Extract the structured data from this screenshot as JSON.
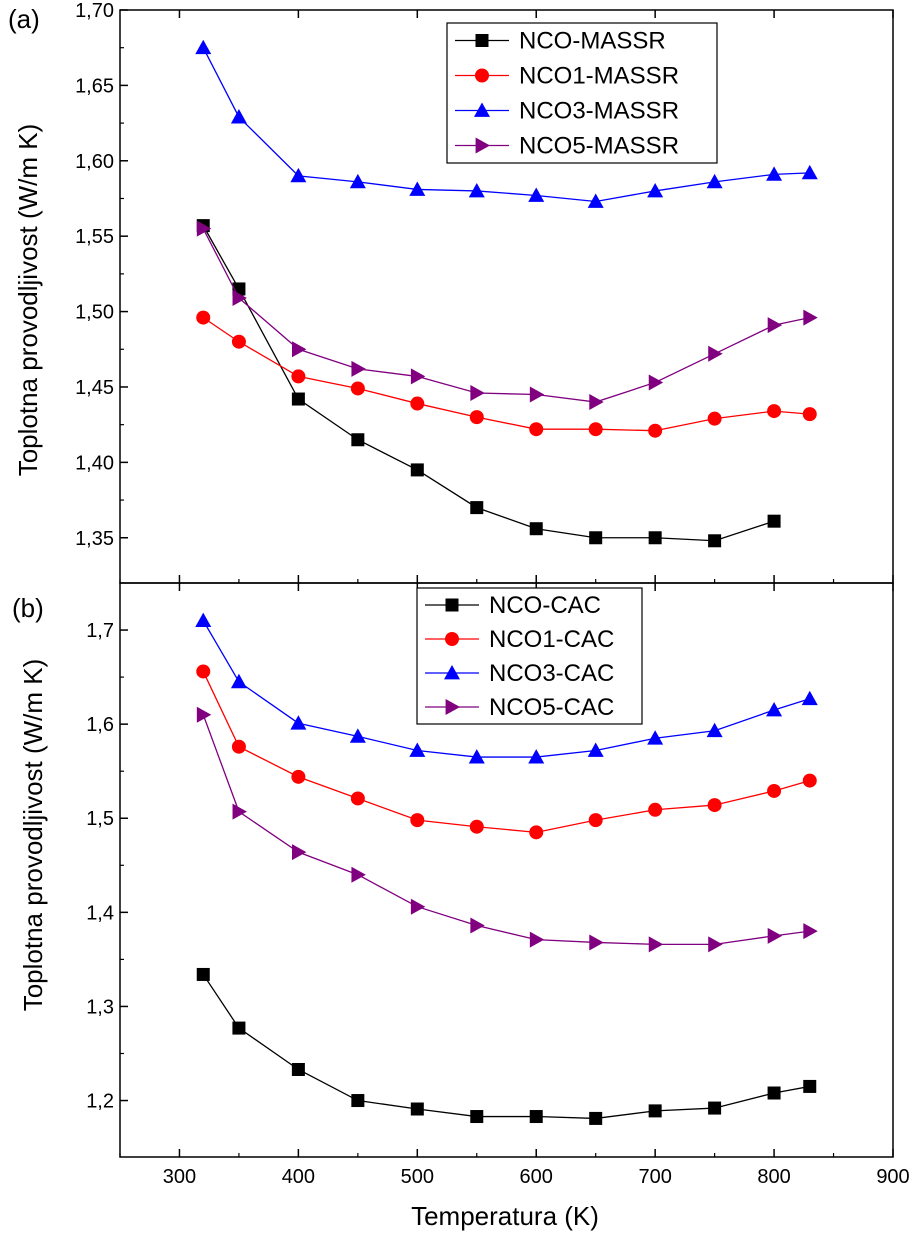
{
  "xlabel": "Temperatura (K)",
  "chart_data": [
    {
      "type": "line",
      "panel_label": "(a)",
      "ylabel": "Toplotna provodljivost (W/m K)",
      "xlim": [
        250,
        900
      ],
      "ylim": [
        1.32,
        1.7
      ],
      "xticks": [
        300,
        400,
        500,
        600,
        700,
        800,
        900
      ],
      "yticks": [
        "1,35",
        "1,40",
        "1,45",
        "1,50",
        "1,55",
        "1,60",
        "1,65",
        "1,70"
      ],
      "ytick_values": [
        1.35,
        1.4,
        1.45,
        1.5,
        1.55,
        1.6,
        1.65,
        1.7
      ],
      "legend_position": "top-right",
      "x": [
        320,
        350,
        400,
        450,
        500,
        550,
        600,
        650,
        700,
        750,
        800,
        830
      ],
      "series": [
        {
          "name": "NCO-MASSR",
          "color": "#000000",
          "marker": "square",
          "values": [
            1.557,
            1.515,
            1.442,
            1.415,
            1.395,
            1.37,
            1.356,
            1.35,
            1.35,
            1.348,
            1.361,
            null
          ]
        },
        {
          "name": "NCO1-MASSR",
          "color": "#ff0000",
          "marker": "circle",
          "values": [
            1.496,
            1.48,
            1.457,
            1.449,
            1.439,
            1.43,
            1.422,
            1.422,
            1.421,
            1.429,
            1.434,
            1.432
          ]
        },
        {
          "name": "NCO3-MASSR",
          "color": "#0000ff",
          "marker": "triangle-up",
          "values": [
            1.675,
            1.629,
            1.59,
            1.586,
            1.581,
            1.58,
            1.577,
            1.573,
            1.58,
            1.586,
            1.591,
            1.592
          ]
        },
        {
          "name": "NCO5-MASSR",
          "color": "#800080",
          "marker": "triangle-right",
          "values": [
            1.555,
            1.509,
            1.475,
            1.462,
            1.457,
            1.446,
            1.445,
            1.44,
            1.453,
            1.472,
            1.491,
            1.496
          ]
        }
      ]
    },
    {
      "type": "line",
      "panel_label": "(b)",
      "ylabel": "Toplotna provodljivost (W/m K)",
      "xlim": [
        250,
        900
      ],
      "ylim": [
        1.14,
        1.75
      ],
      "xticks": [
        300,
        400,
        500,
        600,
        700,
        800,
        900
      ],
      "yticks": [
        "1,2",
        "1,3",
        "1,4",
        "1,5",
        "1,6",
        "1,7"
      ],
      "ytick_values": [
        1.2,
        1.3,
        1.4,
        1.5,
        1.6,
        1.7
      ],
      "legend_position": "top-right",
      "x": [
        320,
        350,
        400,
        450,
        500,
        550,
        600,
        650,
        700,
        750,
        800,
        830
      ],
      "series": [
        {
          "name": "NCO-CAC",
          "color": "#000000",
          "marker": "square",
          "values": [
            1.334,
            1.277,
            1.233,
            1.2,
            1.191,
            1.183,
            1.183,
            1.181,
            1.189,
            1.192,
            1.208,
            1.215
          ]
        },
        {
          "name": "NCO1-CAC",
          "color": "#ff0000",
          "marker": "circle",
          "values": [
            1.656,
            1.576,
            1.544,
            1.521,
            1.498,
            1.491,
            1.485,
            1.498,
            1.509,
            1.514,
            1.529,
            1.54
          ]
        },
        {
          "name": "NCO3-CAC",
          "color": "#0000ff",
          "marker": "triangle-up",
          "values": [
            1.71,
            1.645,
            1.601,
            1.587,
            1.572,
            1.565,
            1.565,
            1.572,
            1.585,
            1.593,
            1.615,
            1.627
          ]
        },
        {
          "name": "NCO5-CAC",
          "color": "#800080",
          "marker": "triangle-right",
          "values": [
            1.61,
            1.507,
            1.464,
            1.44,
            1.406,
            1.386,
            1.371,
            1.368,
            1.366,
            1.366,
            1.375,
            1.38
          ]
        }
      ]
    }
  ]
}
